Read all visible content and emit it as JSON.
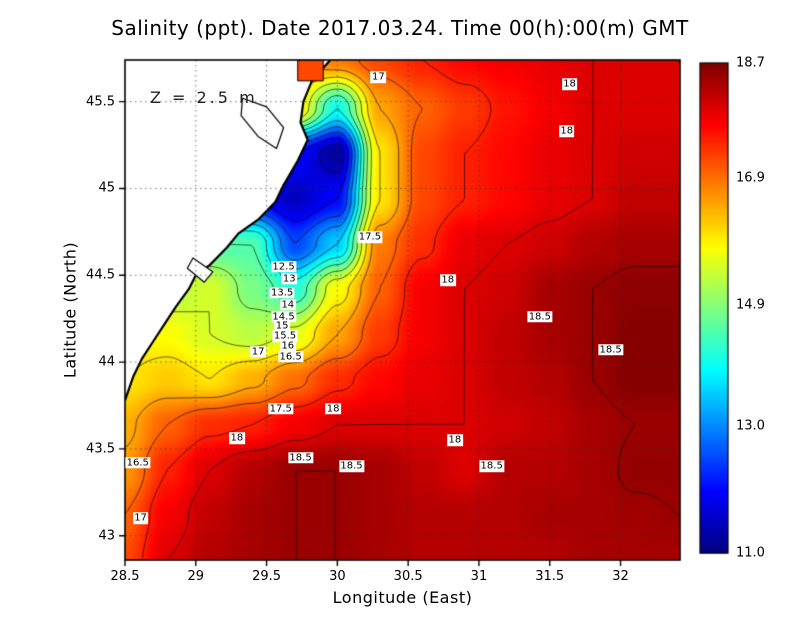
{
  "title": "Salinity (ppt). Date 2017.03.24. Time 00(h):00(m) GMT",
  "annotation": "Z = 2.5 m",
  "axes": {
    "x_label": "Longitude (East)",
    "y_label": "Latitude (North)"
  },
  "chart_data": {
    "type": "heatmap",
    "title": "Salinity (ppt). Date 2017.03.24. Time 00(h):00(m) GMT",
    "xlabel": "Longitude (East)",
    "ylabel": "Latitude (North)",
    "units": "ppt",
    "xlim": [
      28.5,
      32.42
    ],
    "ylim": [
      42.86,
      45.74
    ],
    "x_ticks": [
      28.5,
      29,
      29.5,
      30,
      30.5,
      31,
      31.5,
      32
    ],
    "x_tick_labels": [
      "28.5",
      "29",
      "29.5",
      "30",
      "30.5",
      "31",
      "31.5",
      "32"
    ],
    "y_ticks": [
      43,
      43.5,
      44,
      44.5,
      45,
      45.5
    ],
    "y_tick_labels": [
      "43",
      "43.5",
      "44",
      "44.5",
      "45",
      "45.5"
    ],
    "colorbar": {
      "min": 11.0,
      "max": 18.7,
      "colormap": "jet",
      "tick_values": [
        18.7,
        16.9,
        14.9,
        13.0,
        11.0
      ],
      "tick_labels": [
        "18.7",
        "16.9",
        "14.9",
        "13.0",
        "11.0"
      ]
    },
    "contour_levels": [
      11.5,
      12,
      12.5,
      13,
      13.5,
      14,
      14.5,
      15,
      15.5,
      16,
      16.5,
      17,
      17.5,
      18,
      18.5
    ],
    "lons": [
      28.5,
      28.8,
      29.1,
      29.4,
      29.7,
      30.0,
      30.3,
      30.6,
      30.9,
      31.2,
      31.5,
      31.8,
      32.1,
      32.4
    ],
    "lats": [
      42.86,
      43.12,
      43.38,
      43.64,
      43.9,
      44.16,
      44.42,
      44.68,
      44.94,
      45.2,
      45.46,
      45.74
    ],
    "values": [
      [
        17.2,
        18.0,
        18.3,
        18.4,
        18.5,
        18.5,
        18.4,
        18.3,
        18.3,
        18.3,
        18.3,
        18.4,
        18.4,
        18.4
      ],
      [
        17.0,
        17.8,
        18.2,
        18.4,
        18.5,
        18.5,
        18.4,
        18.3,
        18.3,
        18.3,
        18.4,
        18.4,
        18.45,
        18.5
      ],
      [
        16.6,
        17.5,
        18.0,
        18.3,
        18.5,
        18.5,
        18.4,
        18.2,
        18.0,
        18.3,
        18.3,
        18.4,
        18.55,
        18.55
      ],
      [
        16.4,
        17.0,
        17.4,
        17.5,
        17.8,
        18.0,
        18.0,
        18.0,
        18.0,
        18.1,
        18.2,
        18.4,
        18.5,
        18.5
      ],
      [
        16.0,
        16.2,
        16.0,
        16.4,
        16.9,
        17.4,
        17.7,
        17.9,
        18.0,
        18.2,
        18.3,
        18.5,
        18.65,
        18.65
      ],
      [
        15.8,
        15.8,
        15.5,
        15.3,
        15.6,
        16.5,
        17.3,
        17.8,
        18.0,
        18.2,
        18.4,
        18.5,
        18.65,
        18.65
      ],
      [
        15.2,
        15.2,
        15.5,
        14.8,
        14.2,
        15.8,
        17.0,
        17.8,
        18.0,
        18.1,
        18.4,
        18.5,
        18.6,
        18.6
      ],
      [
        14.5,
        14.5,
        14.5,
        14.5,
        12.5,
        13.5,
        16.8,
        17.4,
        17.9,
        18.0,
        18.1,
        18.3,
        18.4,
        18.4
      ],
      [
        13.0,
        13.0,
        13.0,
        12.0,
        11.5,
        12.0,
        16.0,
        17.2,
        17.5,
        17.7,
        17.9,
        18.0,
        18.2,
        18.2
      ],
      [
        12.5,
        12.5,
        12.5,
        12.5,
        12.0,
        11.2,
        16.0,
        17.2,
        17.5,
        17.7,
        17.9,
        18.0,
        18.1,
        18.1
      ],
      [
        15.0,
        15.0,
        15.0,
        15.0,
        16.0,
        14.0,
        16.5,
        17.0,
        17.3,
        17.6,
        17.8,
        18.0,
        18.0,
        18.0
      ],
      [
        16.5,
        16.5,
        16.5,
        16.5,
        16.5,
        16.8,
        17.2,
        17.5,
        17.7,
        17.8,
        17.9,
        18.0,
        18.0,
        18.0
      ]
    ],
    "contour_labels": [
      {
        "lon": 30.29,
        "lat": 45.64,
        "text": "17"
      },
      {
        "lon": 31.64,
        "lat": 45.6,
        "text": "18"
      },
      {
        "lon": 31.62,
        "lat": 45.33,
        "text": "18"
      },
      {
        "lon": 30.23,
        "lat": 44.72,
        "text": "17.5"
      },
      {
        "lon": 30.78,
        "lat": 44.47,
        "text": "18"
      },
      {
        "lon": 31.43,
        "lat": 44.26,
        "text": "18.5"
      },
      {
        "lon": 31.93,
        "lat": 44.07,
        "text": "18.5"
      },
      {
        "lon": 29.62,
        "lat": 44.55,
        "text": "12.5"
      },
      {
        "lon": 29.66,
        "lat": 44.48,
        "text": "13"
      },
      {
        "lon": 29.61,
        "lat": 44.4,
        "text": "13.5"
      },
      {
        "lon": 29.65,
        "lat": 44.33,
        "text": "14"
      },
      {
        "lon": 29.62,
        "lat": 44.26,
        "text": "14.5"
      },
      {
        "lon": 29.61,
        "lat": 44.21,
        "text": "15"
      },
      {
        "lon": 29.63,
        "lat": 44.15,
        "text": "15.5"
      },
      {
        "lon": 29.65,
        "lat": 44.09,
        "text": "16"
      },
      {
        "lon": 29.67,
        "lat": 44.03,
        "text": "16.5"
      },
      {
        "lon": 29.44,
        "lat": 44.06,
        "text": "17"
      },
      {
        "lon": 29.6,
        "lat": 43.73,
        "text": "17.5"
      },
      {
        "lon": 29.97,
        "lat": 43.73,
        "text": "18"
      },
      {
        "lon": 29.29,
        "lat": 43.56,
        "text": "18"
      },
      {
        "lon": 30.83,
        "lat": 43.55,
        "text": "18"
      },
      {
        "lon": 28.59,
        "lat": 43.42,
        "text": "16.5"
      },
      {
        "lon": 29.74,
        "lat": 43.45,
        "text": "18.5"
      },
      {
        "lon": 30.1,
        "lat": 43.4,
        "text": "18.5"
      },
      {
        "lon": 31.09,
        "lat": 43.4,
        "text": "18.5"
      },
      {
        "lon": 28.61,
        "lat": 43.1,
        "text": "17"
      }
    ],
    "coastline": [
      [
        29.95,
        45.74
      ],
      [
        29.82,
        45.62
      ],
      [
        29.76,
        45.5
      ],
      [
        29.74,
        45.38
      ],
      [
        29.79,
        45.28
      ],
      [
        29.72,
        45.16
      ],
      [
        29.62,
        45.02
      ],
      [
        29.56,
        44.92
      ],
      [
        29.44,
        44.82
      ],
      [
        29.3,
        44.74
      ],
      [
        29.22,
        44.66
      ],
      [
        29.1,
        44.56
      ],
      [
        29.0,
        44.5
      ],
      [
        28.95,
        44.42
      ],
      [
        28.86,
        44.32
      ],
      [
        28.78,
        44.22
      ],
      [
        28.7,
        44.12
      ],
      [
        28.62,
        44.02
      ],
      [
        28.56,
        43.92
      ],
      [
        28.5,
        43.78
      ]
    ],
    "lagoons": [
      [
        [
          29.33,
          45.52
        ],
        [
          29.5,
          45.47
        ],
        [
          29.62,
          45.35
        ],
        [
          29.57,
          45.23
        ],
        [
          29.44,
          45.3
        ],
        [
          29.32,
          45.42
        ]
      ],
      [
        [
          28.98,
          44.6
        ],
        [
          29.12,
          44.52
        ],
        [
          29.06,
          44.46
        ],
        [
          28.94,
          44.54
        ]
      ]
    ],
    "top_edge_patch": {
      "lon_min": 29.72,
      "lon_max": 29.9,
      "lat_min": 45.62,
      "lat_max": 45.74,
      "value": 17.2
    }
  }
}
